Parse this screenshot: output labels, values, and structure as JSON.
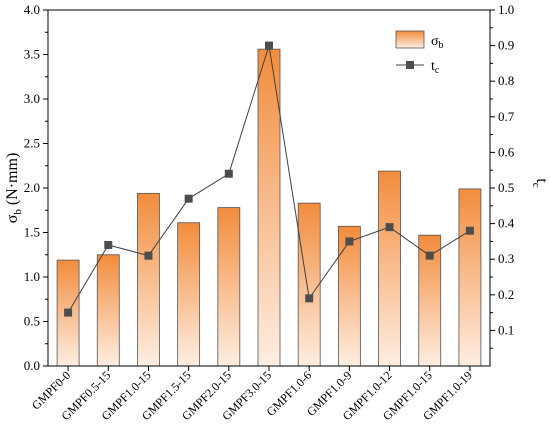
{
  "chart_data": {
    "type": "bar+line",
    "categories": [
      "GMPF0-0",
      "GMPF0.5-15",
      "GMPF1.0-15",
      "GMPF1.5-15",
      "GMPF2.0-15",
      "GMPF3.0-15",
      "GMPF1.0-6",
      "GMPF1.0-9",
      "GMPF1.0-12",
      "GMPF1.0-15",
      "GMPF1.0-19"
    ],
    "series": [
      {
        "name": "σ_b",
        "name_main": "σ",
        "name_sub": "b",
        "type": "bar",
        "axis": "left",
        "values": [
          1.19,
          1.25,
          1.94,
          1.61,
          1.78,
          3.56,
          1.83,
          1.57,
          2.19,
          1.47,
          1.99
        ]
      },
      {
        "name": "t_c",
        "name_main": "t",
        "name_sub": "c",
        "type": "line",
        "axis": "right",
        "values": [
          0.15,
          0.34,
          0.31,
          0.47,
          0.54,
          0.9,
          0.19,
          0.35,
          0.39,
          0.31,
          0.38
        ]
      }
    ],
    "ylabel_left": {
      "main": "σ",
      "sub": "b",
      "unit": " (N·mm)"
    },
    "ylabel_right": {
      "main": "t",
      "sub": "c"
    },
    "ylim_left": [
      0,
      4
    ],
    "ylim_right": [
      0,
      1
    ],
    "yticks_left": [
      "0.0",
      "0.5",
      "1.0",
      "1.5",
      "2.0",
      "2.5",
      "3.0",
      "3.5",
      "4.0"
    ],
    "yticks_right": [
      "0.1",
      "0.2",
      "0.3",
      "0.4",
      "0.5",
      "0.6",
      "0.7",
      "0.8",
      "0.9",
      "1.0"
    ],
    "legend_position": "top-right",
    "grid": false,
    "colors": {
      "bar_top": "#F28C3C",
      "bar_bottom": "#FEEEE2",
      "bar_stroke": "#555555",
      "line": "#404040",
      "marker": "#4D4D4D"
    }
  }
}
